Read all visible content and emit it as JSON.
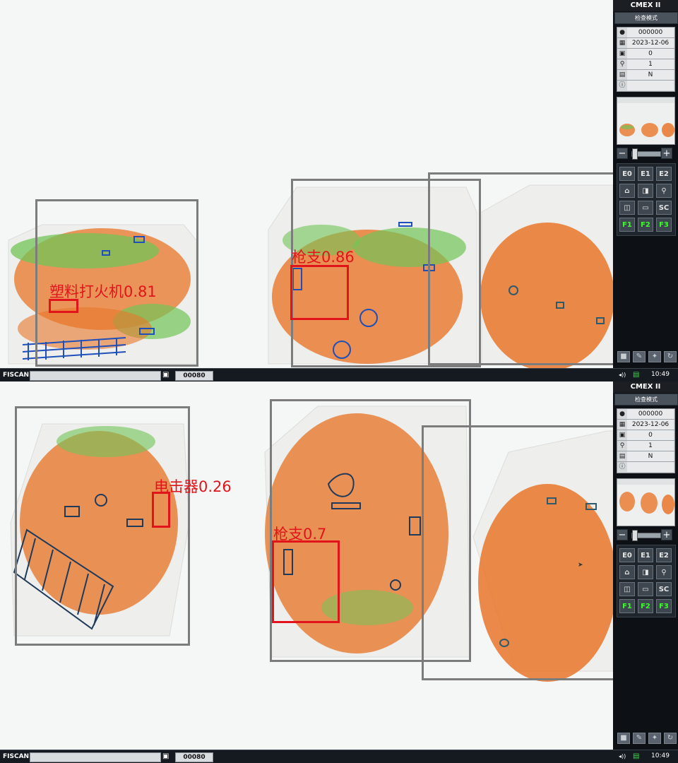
{
  "colors": {
    "detection_box": "#e0141a",
    "region_box": "#7c7c7c",
    "function_key_text": "#39ff29",
    "organic": "#e8762a",
    "inorganic": "#72c457",
    "metal": "#1f4fb8"
  },
  "screens": [
    {
      "sidebar": {
        "brand": "CMEX II",
        "mode": "检查模式",
        "info": [
          {
            "icon": "operator-icon",
            "value": "000000"
          },
          {
            "icon": "calendar-icon",
            "value": "2023-12-06"
          },
          {
            "icon": "count-icon",
            "value": "0"
          },
          {
            "icon": "magnifier-icon",
            "value": "1"
          },
          {
            "icon": "briefcase-icon",
            "value": "N"
          },
          {
            "icon": "info-icon",
            "value": ""
          }
        ],
        "buttons": [
          [
            "E0",
            "E1",
            "E2"
          ],
          [
            "home-icon",
            "panel-icon",
            "zoom-icon"
          ],
          [
            "split-icon",
            "film-icon",
            "SC"
          ],
          [
            "F1",
            "F2",
            "F3"
          ]
        ]
      },
      "detections": [
        {
          "label": "塑料打火机0.81"
        },
        {
          "label": "枪支0.86"
        }
      ],
      "status": {
        "app": "FISCAN",
        "counter": "00080",
        "time": "10:49"
      }
    },
    {
      "sidebar": {
        "brand": "CMEX II",
        "mode": "检查模式",
        "info": [
          {
            "icon": "operator-icon",
            "value": "000000"
          },
          {
            "icon": "calendar-icon",
            "value": "2023-12-06"
          },
          {
            "icon": "count-icon",
            "value": "0"
          },
          {
            "icon": "magnifier-icon",
            "value": "1"
          },
          {
            "icon": "briefcase-icon",
            "value": "N"
          },
          {
            "icon": "info-icon",
            "value": ""
          }
        ],
        "buttons": [
          [
            "E0",
            "E1",
            "E2"
          ],
          [
            "home-icon",
            "panel-icon",
            "zoom-icon"
          ],
          [
            "split-icon",
            "film-icon",
            "SC"
          ],
          [
            "F1",
            "F2",
            "F3"
          ]
        ]
      },
      "detections": [
        {
          "label": "电击器0.26"
        },
        {
          "label": "枪支0.7"
        }
      ],
      "status": {
        "app": "FISCAN",
        "counter": "00080",
        "time": "10:49"
      }
    }
  ]
}
